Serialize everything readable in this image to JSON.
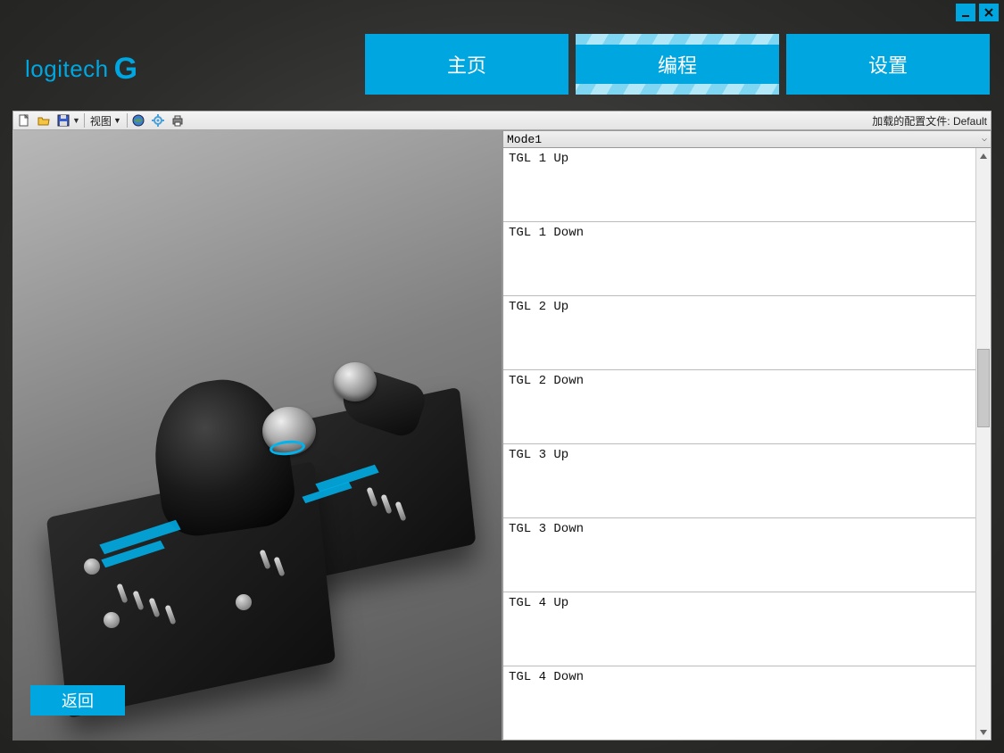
{
  "colors": {
    "accent": "#00a6e0",
    "accent_light": "#7ed6f2",
    "bg_dark": "#2a2a28",
    "panel_bg": "#ffffff"
  },
  "window": {
    "minimize_title": "Minimize",
    "close_title": "Close"
  },
  "brand": {
    "name": "logitech",
    "suffix": "G"
  },
  "tabs": {
    "home": "主页",
    "programming": "编程",
    "settings": "设置",
    "active_index": 1
  },
  "toolbar": {
    "view_label": "视图",
    "profile_prefix": "加载的配置文件: ",
    "profile_name": "Default"
  },
  "left": {
    "back": "返回"
  },
  "mode": {
    "selected": "Mode1"
  },
  "bindings": [
    "TGL 1 Up",
    "TGL 1 Down",
    "TGL 2 Up",
    "TGL 2 Down",
    "TGL 3 Up",
    "TGL 3 Down",
    "TGL 4 Up",
    "TGL 4 Down"
  ],
  "scroll": {
    "thumb_top_pct": 33,
    "thumb_height_pct": 14
  }
}
